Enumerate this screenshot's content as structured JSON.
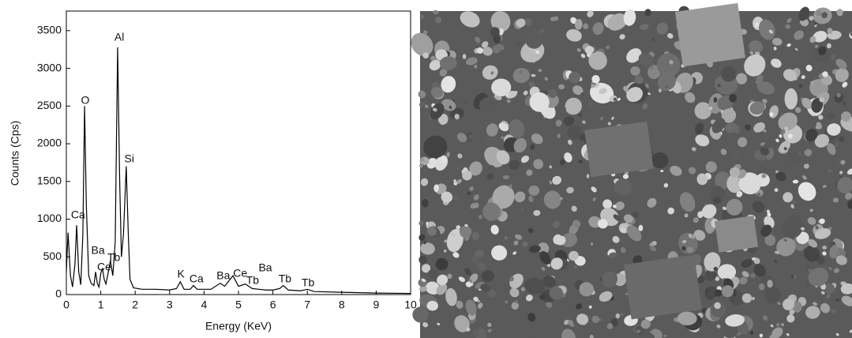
{
  "chart_data": {
    "type": "line",
    "x_label": "Energy (KeV)",
    "y_label": "Counts (Cps)",
    "color": "#000000",
    "x": [
      0.0,
      0.05,
      0.12,
      0.18,
      0.25,
      0.3,
      0.36,
      0.42,
      0.48,
      0.53,
      0.58,
      0.65,
      0.72,
      0.8,
      0.85,
      0.9,
      0.95,
      1.0,
      1.05,
      1.1,
      1.15,
      1.22,
      1.28,
      1.35,
      1.42,
      1.49,
      1.55,
      1.6,
      1.66,
      1.74,
      1.8,
      1.85,
      1.95,
      2.2,
      2.6,
      3.0,
      3.2,
      3.31,
      3.42,
      3.6,
      3.69,
      3.8,
      4.2,
      4.47,
      4.6,
      4.84,
      5.0,
      5.2,
      5.4,
      5.6,
      5.8,
      6.0,
      6.2,
      6.3,
      6.45,
      6.8,
      7.0,
      7.2,
      8.0,
      9.0,
      10.0
    ],
    "values": [
      300,
      820,
      250,
      100,
      400,
      920,
      300,
      130,
      800,
      2500,
      1200,
      250,
      150,
      120,
      300,
      150,
      100,
      280,
      350,
      200,
      140,
      300,
      450,
      250,
      700,
      3280,
      1500,
      500,
      800,
      1700,
      800,
      200,
      90,
      70,
      70,
      60,
      80,
      170,
      70,
      70,
      120,
      70,
      70,
      150,
      110,
      250,
      110,
      140,
      80,
      70,
      60,
      60,
      80,
      120,
      60,
      50,
      70,
      40,
      30,
      20,
      15
    ],
    "xlim": [
      0,
      10
    ],
    "ylim": [
      0,
      3760
    ],
    "xticks": [
      0,
      1,
      2,
      3,
      4,
      5,
      6,
      7,
      8,
      9,
      10
    ],
    "yticks": [
      0,
      500,
      1000,
      1500,
      2000,
      2500,
      3000,
      3500
    ],
    "annotations": [
      {
        "text": "Ca",
        "x": 0.34,
        "y": 1048
      },
      {
        "text": "O",
        "x": 0.55,
        "y": 2568
      },
      {
        "text": "Ba",
        "x": 0.92,
        "y": 577
      },
      {
        "text": "Ce",
        "x": 1.1,
        "y": 356
      },
      {
        "text": "Tb",
        "x": 1.38,
        "y": 482
      },
      {
        "text": "Al",
        "x": 1.54,
        "y": 3407
      },
      {
        "text": "Si",
        "x": 1.83,
        "y": 1792
      },
      {
        "text": "K",
        "x": 3.33,
        "y": 262
      },
      {
        "text": "Ca",
        "x": 3.78,
        "y": 199
      },
      {
        "text": "Ba",
        "x": 4.56,
        "y": 241
      },
      {
        "text": "Ce",
        "x": 5.05,
        "y": 272
      },
      {
        "text": "Tb",
        "x": 5.41,
        "y": 178
      },
      {
        "text": "Ba",
        "x": 5.78,
        "y": 346
      },
      {
        "text": "Tb",
        "x": 6.35,
        "y": 199
      },
      {
        "text": "Tb",
        "x": 7.02,
        "y": 147
      }
    ]
  }
}
